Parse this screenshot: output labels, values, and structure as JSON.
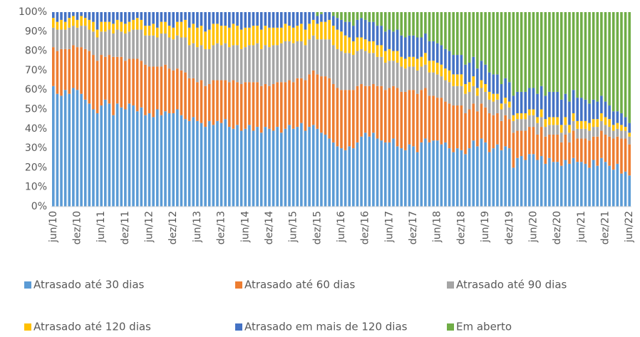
{
  "chart_data": {
    "type": "stacked_bar_100",
    "categories": [
      "jun/10",
      null,
      null,
      null,
      null,
      null,
      "dez/10",
      null,
      null,
      null,
      null,
      null,
      "jun/11",
      null,
      null,
      null,
      null,
      null,
      "dez/11",
      null,
      null,
      null,
      null,
      null,
      "jun/12",
      null,
      null,
      null,
      null,
      null,
      "dez/12",
      null,
      null,
      null,
      null,
      null,
      "jun/13",
      null,
      null,
      null,
      null,
      null,
      "dez/13",
      null,
      null,
      null,
      null,
      null,
      "jun/14",
      null,
      null,
      null,
      null,
      null,
      "dez/14",
      null,
      null,
      null,
      null,
      null,
      "jun/15",
      null,
      null,
      null,
      null,
      null,
      "dez/15",
      null,
      null,
      null,
      null,
      null,
      "jun/16",
      null,
      null,
      null,
      null,
      null,
      "dez/16",
      null,
      null,
      null,
      null,
      null,
      "jun/17",
      null,
      null,
      null,
      null,
      null,
      "dez/17",
      null,
      null,
      null,
      null,
      null,
      "jun/18",
      null,
      null,
      null,
      null,
      null,
      "dez/18",
      null,
      null,
      null,
      null,
      null,
      "jun/19",
      null,
      null,
      null,
      null,
      null,
      "dez/19",
      null,
      null,
      null,
      null,
      null,
      "jun/20",
      null,
      null,
      null,
      null,
      null,
      "dez/20",
      null,
      null,
      null,
      null,
      null,
      "jun/21",
      null,
      null,
      null,
      null,
      null,
      "dez/21",
      null,
      null,
      null,
      null,
      null,
      "jun/22"
    ],
    "series": [
      {
        "name": "Atrasado até 30 dias",
        "color": "#5b9bd5",
        "values": [
          62,
          58,
          57,
          60,
          58,
          61,
          60,
          58,
          55,
          53,
          50,
          48,
          52,
          55,
          53,
          47,
          53,
          51,
          50,
          53,
          52,
          49,
          51,
          47,
          48,
          46,
          50,
          47,
          49,
          48,
          48,
          50,
          47,
          45,
          44,
          46,
          44,
          43,
          41,
          44,
          42,
          44,
          43,
          45,
          41,
          40,
          42,
          39,
          40,
          42,
          39,
          41,
          38,
          41,
          40,
          39,
          41,
          38,
          40,
          42,
          40,
          41,
          43,
          39,
          41,
          42,
          40,
          38,
          37,
          35,
          33,
          31,
          30,
          29,
          31,
          30,
          33,
          36,
          38,
          36,
          38,
          35,
          34,
          33,
          33,
          35,
          31,
          30,
          29,
          32,
          31,
          28,
          33,
          35,
          33,
          34,
          34,
          32,
          33,
          30,
          28,
          30,
          29,
          27,
          30,
          34,
          31,
          35,
          33,
          28,
          30,
          32,
          29,
          31,
          30,
          20,
          25,
          26,
          24,
          27,
          27,
          24,
          26,
          22,
          25,
          23,
          23,
          21,
          24,
          22,
          25,
          23,
          23,
          22,
          20,
          24,
          21,
          25,
          23,
          21,
          19,
          22,
          17,
          18,
          16
        ]
      },
      {
        "name": "Atrasado até 60 dias",
        "color": "#ed7d31",
        "values": [
          20,
          22,
          24,
          21,
          23,
          22,
          22,
          24,
          26,
          27,
          28,
          27,
          26,
          22,
          25,
          30,
          24,
          26,
          25,
          23,
          24,
          27,
          24,
          26,
          24,
          26,
          22,
          25,
          24,
          23,
          22,
          21,
          23,
          24,
          22,
          20,
          20,
          22,
          21,
          19,
          23,
          21,
          22,
          20,
          23,
          25,
          22,
          24,
          24,
          22,
          25,
          23,
          24,
          22,
          22,
          24,
          23,
          26,
          24,
          23,
          24,
          25,
          23,
          26,
          27,
          28,
          28,
          29,
          30,
          31,
          30,
          30,
          30,
          31,
          29,
          30,
          29,
          27,
          24,
          26,
          25,
          27,
          28,
          27,
          28,
          27,
          30,
          29,
          30,
          28,
          29,
          30,
          27,
          26,
          24,
          23,
          22,
          24,
          21,
          23,
          24,
          22,
          23,
          21,
          20,
          19,
          18,
          18,
          18,
          20,
          17,
          16,
          15,
          16,
          15,
          18,
          14,
          13,
          15,
          14,
          14,
          13,
          15,
          14,
          12,
          14,
          14,
          12,
          13,
          11,
          14,
          12,
          12,
          13,
          14,
          12,
          15,
          14,
          14,
          15,
          16,
          14,
          18,
          17,
          16
        ]
      },
      {
        "name": "Atrasado até 90 dias",
        "color": "#a5a5a5",
        "values": [
          10,
          11,
          10,
          10,
          11,
          10,
          10,
          11,
          12,
          11,
          12,
          12,
          12,
          13,
          13,
          12,
          14,
          13,
          14,
          14,
          15,
          15,
          16,
          15,
          16,
          16,
          15,
          17,
          16,
          16,
          16,
          17,
          17,
          18,
          17,
          18,
          18,
          18,
          19,
          18,
          18,
          19,
          18,
          19,
          18,
          18,
          19,
          18,
          18,
          19,
          19,
          20,
          19,
          20,
          20,
          20,
          19,
          20,
          21,
          20,
          20,
          19,
          19,
          18,
          18,
          18,
          18,
          19,
          19,
          20,
          20,
          20,
          20,
          19,
          19,
          18,
          18,
          18,
          18,
          17,
          16,
          15,
          15,
          14,
          14,
          13,
          13,
          13,
          12,
          12,
          12,
          12,
          12,
          12,
          12,
          12,
          12,
          11,
          11,
          11,
          10,
          10,
          10,
          10,
          9,
          9,
          8,
          8,
          8,
          7,
          7,
          7,
          6,
          6,
          6,
          6,
          6,
          6,
          6,
          6,
          6,
          6,
          5,
          5,
          5,
          5,
          5,
          5,
          5,
          5,
          5,
          5,
          5,
          5,
          5,
          5,
          5,
          5,
          5,
          5,
          4,
          4,
          4,
          4,
          4
        ]
      },
      {
        "name": "Atrasado até 120 dias",
        "color": "#ffc000",
        "values": [
          5,
          4,
          5,
          4,
          5,
          5,
          4,
          5,
          4,
          5,
          5,
          4,
          5,
          5,
          4,
          5,
          5,
          5,
          5,
          5,
          5,
          6,
          5,
          5,
          5,
          6,
          5,
          6,
          6,
          6,
          6,
          7,
          8,
          9,
          9,
          10,
          10,
          10,
          9,
          10,
          11,
          10,
          10,
          9,
          10,
          11,
          10,
          10,
          10,
          9,
          10,
          9,
          10,
          10,
          10,
          9,
          9,
          8,
          9,
          8,
          8,
          8,
          9,
          8,
          8,
          8,
          8,
          9,
          9,
          10,
          10,
          10,
          10,
          9,
          8,
          7,
          7,
          6,
          6,
          6,
          6,
          6,
          6,
          6,
          6,
          5,
          6,
          5,
          5,
          5,
          5,
          6,
          5,
          6,
          6,
          6,
          6,
          6,
          6,
          6,
          6,
          6,
          6,
          5,
          5,
          5,
          4,
          4,
          4,
          4,
          4,
          3,
          3,
          3,
          3,
          3,
          3,
          3,
          3,
          3,
          3,
          3,
          4,
          4,
          4,
          4,
          4,
          4,
          4,
          4,
          4,
          4,
          4,
          4,
          4,
          4,
          4,
          4,
          4,
          4,
          3,
          3,
          3,
          2,
          2
        ]
      },
      {
        "name": "Atrasado em mais de 120 dias",
        "color": "#4472c4",
        "values": [
          3,
          5,
          4,
          5,
          3,
          2,
          4,
          2,
          3,
          4,
          5,
          9,
          5,
          5,
          5,
          6,
          4,
          5,
          6,
          5,
          4,
          3,
          4,
          7,
          7,
          6,
          8,
          5,
          5,
          7,
          8,
          5,
          5,
          4,
          8,
          6,
          8,
          7,
          10,
          9,
          6,
          6,
          7,
          7,
          8,
          6,
          7,
          9,
          8,
          8,
          7,
          7,
          9,
          7,
          8,
          8,
          8,
          8,
          6,
          7,
          8,
          7,
          6,
          9,
          6,
          4,
          4,
          4,
          5,
          4,
          5,
          6,
          6,
          7,
          8,
          8,
          9,
          10,
          10,
          10,
          10,
          10,
          10,
          10,
          10,
          10,
          11,
          11,
          11,
          11,
          11,
          11,
          10,
          10,
          10,
          10,
          10,
          10,
          10,
          10,
          10,
          10,
          10,
          10,
          10,
          10,
          10,
          10,
          10,
          10,
          10,
          10,
          10,
          10,
          10,
          10,
          11,
          11,
          11,
          11,
          11,
          12,
          12,
          12,
          13,
          13,
          13,
          13,
          12,
          12,
          12,
          12,
          12,
          11,
          10,
          10,
          9,
          9,
          8,
          7,
          7,
          6,
          6,
          5,
          5
        ]
      },
      {
        "name": "Em aberto",
        "color": "#70ad47",
        "values": [
          0,
          0,
          0,
          0,
          0,
          0,
          0,
          0,
          0,
          0,
          0,
          0,
          0,
          0,
          0,
          0,
          0,
          0,
          0,
          0,
          0,
          0,
          0,
          0,
          0,
          0,
          0,
          0,
          0,
          0,
          0,
          0,
          0,
          0,
          0,
          0,
          0,
          0,
          0,
          0,
          0,
          0,
          0,
          0,
          0,
          0,
          0,
          0,
          0,
          0,
          0,
          0,
          0,
          0,
          0,
          0,
          0,
          0,
          0,
          0,
          0,
          0,
          0,
          0,
          0,
          0,
          2,
          1,
          0,
          0,
          2,
          3,
          4,
          5,
          5,
          7,
          4,
          3,
          4,
          5,
          5,
          7,
          7,
          10,
          9,
          10,
          9,
          12,
          13,
          12,
          12,
          13,
          13,
          11,
          15,
          15,
          16,
          17,
          19,
          20,
          22,
          22,
          22,
          27,
          26,
          23,
          29,
          25,
          27,
          31,
          32,
          32,
          37,
          34,
          36,
          43,
          41,
          41,
          41,
          39,
          39,
          42,
          38,
          43,
          41,
          41,
          41,
          45,
          42,
          46,
          40,
          44,
          44,
          45,
          47,
          45,
          46,
          43,
          46,
          48,
          51,
          51,
          52,
          54,
          57
        ]
      }
    ],
    "ylim": [
      0,
      100
    ],
    "yticks": [
      {
        "value": 0,
        "label": "0%"
      },
      {
        "value": 10,
        "label": "10%"
      },
      {
        "value": 20,
        "label": "20%"
      },
      {
        "value": 30,
        "label": "30%"
      },
      {
        "value": 40,
        "label": "40%"
      },
      {
        "value": 50,
        "label": "50%"
      },
      {
        "value": 60,
        "label": "60%"
      },
      {
        "value": 70,
        "label": "70%"
      },
      {
        "value": 80,
        "label": "80%"
      },
      {
        "value": 90,
        "label": "90%"
      },
      {
        "value": 100,
        "label": "100%"
      }
    ],
    "grid": false,
    "legend": "bottom"
  }
}
